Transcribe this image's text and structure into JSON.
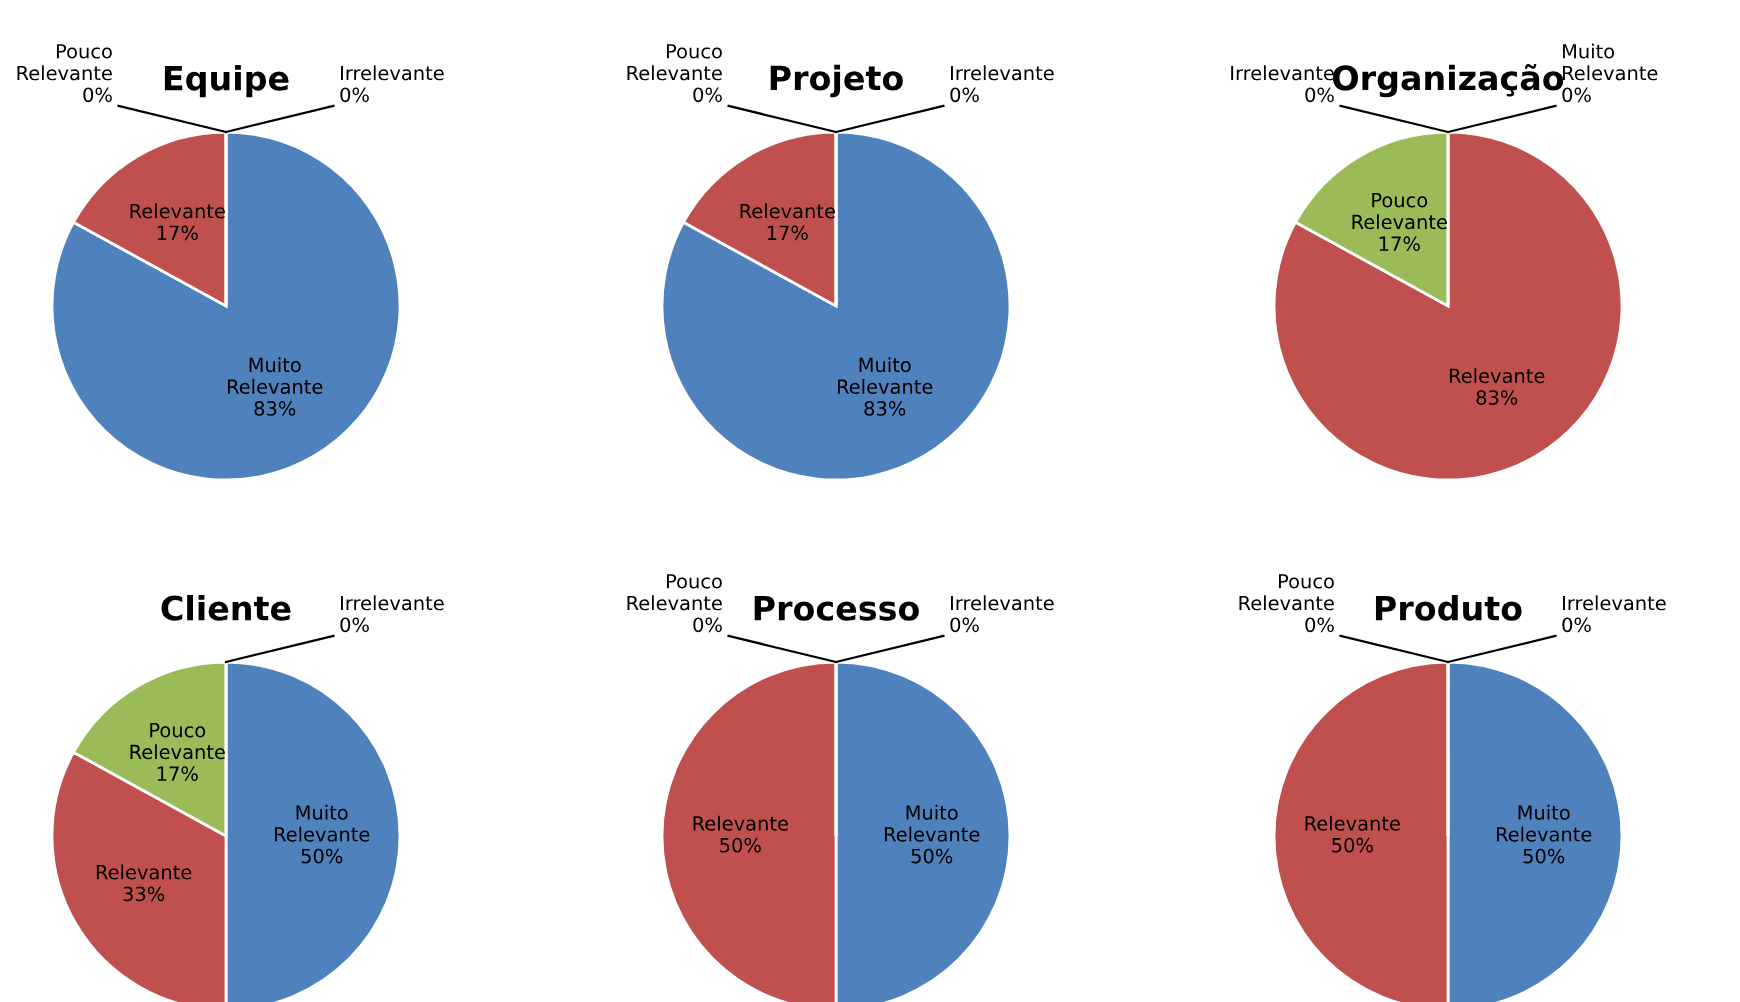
{
  "chart_data": [
    {
      "type": "pie",
      "title": "Equipe",
      "categories": [
        "Muito Relevante",
        "Relevante",
        "Pouco Relevante",
        "Irrelevante"
      ],
      "values": [
        83,
        17,
        0,
        0
      ],
      "value_labels": [
        "83%",
        "17%",
        "0%",
        "0%"
      ],
      "colors": [
        "#4f81bd",
        "#c0504d",
        "#9bbb59",
        "#8064a2"
      ]
    },
    {
      "type": "pie",
      "title": "Projeto",
      "categories": [
        "Muito Relevante",
        "Relevante",
        "Pouco Relevante",
        "Irrelevante"
      ],
      "values": [
        83,
        17,
        0,
        0
      ],
      "value_labels": [
        "83%",
        "17%",
        "0%",
        "0%"
      ],
      "colors": [
        "#4f81bd",
        "#c0504d",
        "#9bbb59",
        "#8064a2"
      ]
    },
    {
      "type": "pie",
      "title": "Organização",
      "categories": [
        "Muito Relevante",
        "Relevante",
        "Pouco Relevante",
        "Irrelevante"
      ],
      "values": [
        0,
        83,
        17,
        0
      ],
      "value_labels": [
        "0%",
        "83%",
        "17%",
        "0%"
      ],
      "colors": [
        "#4f81bd",
        "#c0504d",
        "#9bbb59",
        "#8064a2"
      ]
    },
    {
      "type": "pie",
      "title": "Cliente",
      "categories": [
        "Muito Relevante",
        "Relevante",
        "Pouco Relevante",
        "Irrelevante"
      ],
      "values": [
        50,
        33,
        17,
        0
      ],
      "value_labels": [
        "50%",
        "33%",
        "17%",
        "0%"
      ],
      "colors": [
        "#4f81bd",
        "#c0504d",
        "#9bbb59",
        "#8064a2"
      ]
    },
    {
      "type": "pie",
      "title": "Processo",
      "categories": [
        "Muito Relevante",
        "Relevante",
        "Pouco Relevante",
        "Irrelevante"
      ],
      "values": [
        50,
        50,
        0,
        0
      ],
      "value_labels": [
        "50%",
        "50%",
        "0%",
        "0%"
      ],
      "colors": [
        "#4f81bd",
        "#c0504d",
        "#9bbb59",
        "#8064a2"
      ]
    },
    {
      "type": "pie",
      "title": "Produto",
      "categories": [
        "Muito Relevante",
        "Relevante",
        "Pouco Relevante",
        "Irrelevante"
      ],
      "values": [
        50,
        50,
        0,
        0
      ],
      "value_labels": [
        "50%",
        "50%",
        "0%",
        "0%"
      ],
      "colors": [
        "#4f81bd",
        "#c0504d",
        "#9bbb59",
        "#8064a2"
      ]
    }
  ]
}
